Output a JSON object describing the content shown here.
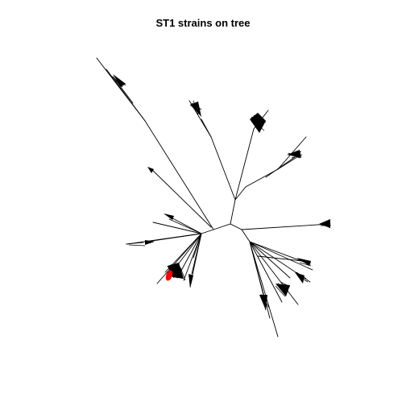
{
  "title": "ST1 strains on tree",
  "colors": {
    "branch": "#000000",
    "highlighted_strains": "#ff0000",
    "background": "#ffffff"
  },
  "legend": "none",
  "layout": "unrooted"
}
